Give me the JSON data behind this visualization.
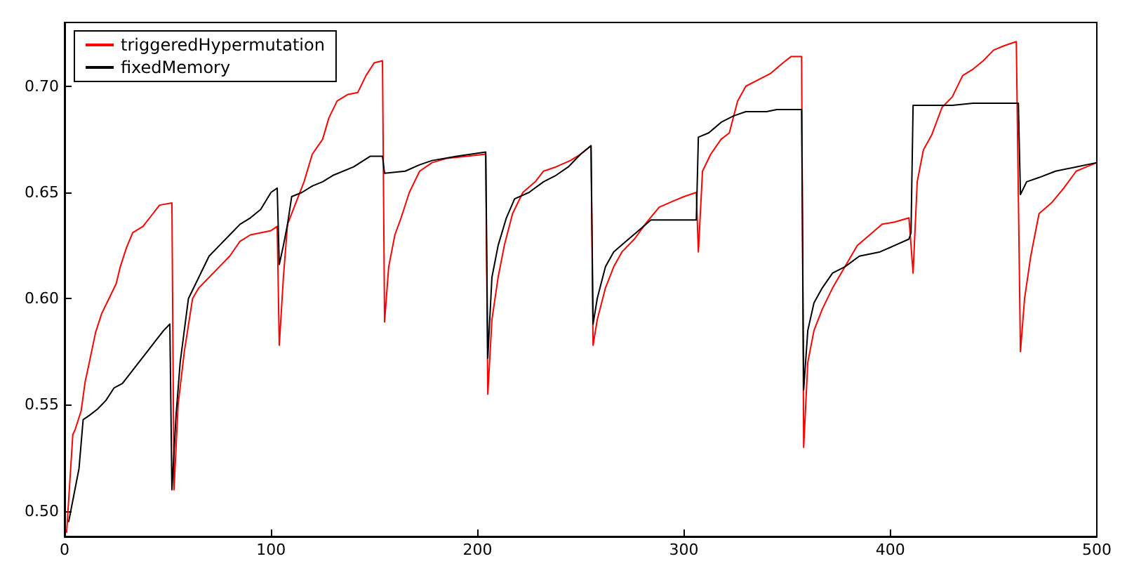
{
  "chart_data": {
    "type": "line",
    "xlim": [
      0,
      500
    ],
    "ylim": [
      0.488,
      0.73
    ],
    "xticks": [
      0,
      100,
      200,
      300,
      400,
      500
    ],
    "yticks": [
      {
        "value": 0.5,
        "label": "0.50"
      },
      {
        "value": 0.55,
        "label": "0.55"
      },
      {
        "value": 0.6,
        "label": "0.60"
      },
      {
        "value": 0.65,
        "label": "0.65"
      },
      {
        "value": 0.7,
        "label": "0.70"
      }
    ],
    "grid": false,
    "legend": "top left",
    "marker": "none",
    "line_style": "solid",
    "series": [
      {
        "name": "triggeredHypermutation",
        "color": "#ff0000",
        "x": [
          1,
          4,
          5,
          8,
          10,
          12,
          15,
          18,
          22,
          25,
          27,
          30,
          33,
          38,
          42,
          46,
          52,
          53,
          55,
          58,
          62,
          65,
          70,
          75,
          80,
          85,
          90,
          95,
          100,
          103,
          104,
          106,
          108,
          112,
          116,
          120,
          125,
          128,
          132,
          137,
          142,
          146,
          150,
          154,
          155,
          157,
          160,
          163,
          167,
          172,
          178,
          185,
          195,
          204,
          205,
          207,
          210,
          213,
          217,
          222,
          228,
          232,
          238,
          245,
          250,
          255,
          256,
          258,
          262,
          266,
          270,
          276,
          282,
          288,
          295,
          300,
          306,
          307,
          309,
          313,
          318,
          322,
          326,
          330,
          336,
          342,
          348,
          352,
          357,
          358,
          360,
          363,
          367,
          372,
          378,
          384,
          390,
          396,
          402,
          409,
          411,
          413,
          416,
          420,
          425,
          430,
          435,
          440,
          445,
          450,
          455,
          461,
          463,
          465,
          468,
          472,
          478,
          484,
          490,
          495,
          500
        ],
        "values": [
          0.49,
          0.536,
          0.538,
          0.547,
          0.561,
          0.57,
          0.584,
          0.593,
          0.601,
          0.607,
          0.615,
          0.624,
          0.631,
          0.634,
          0.639,
          0.644,
          0.645,
          0.51,
          0.55,
          0.575,
          0.6,
          0.605,
          0.61,
          0.615,
          0.62,
          0.627,
          0.63,
          0.631,
          0.632,
          0.634,
          0.578,
          0.61,
          0.635,
          0.645,
          0.655,
          0.668,
          0.675,
          0.685,
          0.693,
          0.696,
          0.697,
          0.705,
          0.711,
          0.712,
          0.589,
          0.615,
          0.63,
          0.638,
          0.65,
          0.66,
          0.664,
          0.666,
          0.667,
          0.668,
          0.555,
          0.59,
          0.61,
          0.625,
          0.64,
          0.65,
          0.655,
          0.66,
          0.662,
          0.665,
          0.668,
          0.672,
          0.578,
          0.59,
          0.605,
          0.615,
          0.622,
          0.628,
          0.636,
          0.643,
          0.646,
          0.648,
          0.65,
          0.622,
          0.66,
          0.668,
          0.675,
          0.678,
          0.693,
          0.7,
          0.703,
          0.706,
          0.711,
          0.714,
          0.714,
          0.53,
          0.57,
          0.585,
          0.595,
          0.605,
          0.615,
          0.625,
          0.63,
          0.635,
          0.636,
          0.638,
          0.612,
          0.655,
          0.67,
          0.677,
          0.69,
          0.695,
          0.705,
          0.708,
          0.712,
          0.717,
          0.719,
          0.721,
          0.575,
          0.6,
          0.62,
          0.64,
          0.645,
          0.652,
          0.66,
          0.662,
          0.664
        ]
      },
      {
        "name": "fixedMemory",
        "color": "#000000",
        "x": [
          2,
          5,
          7,
          9,
          12,
          16,
          20,
          24,
          28,
          32,
          36,
          40,
          44,
          48,
          51,
          52,
          54,
          56,
          60,
          65,
          70,
          75,
          80,
          85,
          90,
          95,
          100,
          103,
          104,
          106,
          108,
          110,
          115,
          120,
          125,
          130,
          140,
          148,
          154,
          155,
          165,
          172,
          178,
          190,
          204,
          205,
          207,
          210,
          214,
          218,
          225,
          232,
          238,
          244,
          250,
          255,
          256,
          258,
          262,
          266,
          272,
          278,
          284,
          295,
          306,
          307,
          312,
          318,
          324,
          330,
          340,
          345,
          357,
          358,
          360,
          363,
          367,
          372,
          378,
          385,
          395,
          402,
          409,
          410,
          411,
          430,
          440,
          462,
          463,
          466,
          472,
          480,
          490,
          500
        ],
        "values": [
          0.495,
          0.51,
          0.52,
          0.543,
          0.545,
          0.548,
          0.552,
          0.558,
          0.56,
          0.565,
          0.57,
          0.575,
          0.58,
          0.585,
          0.588,
          0.51,
          0.545,
          0.57,
          0.6,
          0.61,
          0.62,
          0.625,
          0.63,
          0.635,
          0.638,
          0.642,
          0.65,
          0.652,
          0.616,
          0.625,
          0.635,
          0.648,
          0.65,
          0.653,
          0.655,
          0.658,
          0.662,
          0.667,
          0.667,
          0.659,
          0.66,
          0.663,
          0.665,
          0.667,
          0.669,
          0.572,
          0.61,
          0.625,
          0.638,
          0.647,
          0.65,
          0.655,
          0.658,
          0.662,
          0.668,
          0.672,
          0.588,
          0.6,
          0.615,
          0.622,
          0.627,
          0.632,
          0.637,
          0.637,
          0.637,
          0.676,
          0.678,
          0.683,
          0.686,
          0.688,
          0.688,
          0.689,
          0.689,
          0.557,
          0.585,
          0.598,
          0.605,
          0.612,
          0.615,
          0.62,
          0.622,
          0.625,
          0.628,
          0.631,
          0.691,
          0.691,
          0.692,
          0.692,
          0.649,
          0.655,
          0.657,
          0.66,
          0.662,
          0.664
        ]
      }
    ]
  }
}
